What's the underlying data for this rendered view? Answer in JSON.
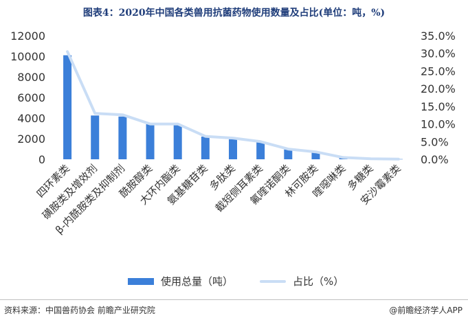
{
  "title": "图表4：2020年中国各类兽用抗菌药物使用数量及占比(单位：吨，%)",
  "source": "资料来源：中国兽药协会 前瞻产业研究院",
  "brand": "@前瞻经济学人APP",
  "colors": {
    "bar": "#3b7fd9",
    "line": "#c9ddf5",
    "title": "#1f3d7a"
  },
  "chart_data": {
    "type": "bar",
    "categories": [
      "四环素类",
      "磺胺类及增效剂",
      "β-内酰胺类及抑制剂",
      "酰胺醇类",
      "大环内酯类",
      "氨基糖苷类",
      "多肽类",
      "截短侧耳素类",
      "氟喹诺酮类",
      "林可胺类",
      "喹噁啉类",
      "多糖类",
      "安沙霉素类"
    ],
    "series": [
      {
        "name": "使用总量（吨）",
        "type": "bar",
        "axis": "left",
        "values": [
          10100,
          4250,
          4150,
          3400,
          3300,
          2200,
          1950,
          1650,
          950,
          700,
          150,
          50,
          20
        ]
      },
      {
        "name": "占比（%）",
        "type": "line",
        "axis": "right",
        "values": [
          30.5,
          13.0,
          12.6,
          10.0,
          10.0,
          6.5,
          6.0,
          5.0,
          2.9,
          2.1,
          0.5,
          0.15,
          0.06
        ]
      }
    ],
    "y_left": {
      "ylim": [
        0,
        12000
      ],
      "ticks": [
        "0",
        "2000",
        "4000",
        "6000",
        "8000",
        "10000",
        "12000"
      ]
    },
    "y_right": {
      "ylim": [
        0,
        35
      ],
      "ticks": [
        "0.0%",
        "5.0%",
        "10.0%",
        "15.0%",
        "20.0%",
        "25.0%",
        "30.0%",
        "35.0%"
      ]
    },
    "legend": "bottom",
    "grid": false
  }
}
